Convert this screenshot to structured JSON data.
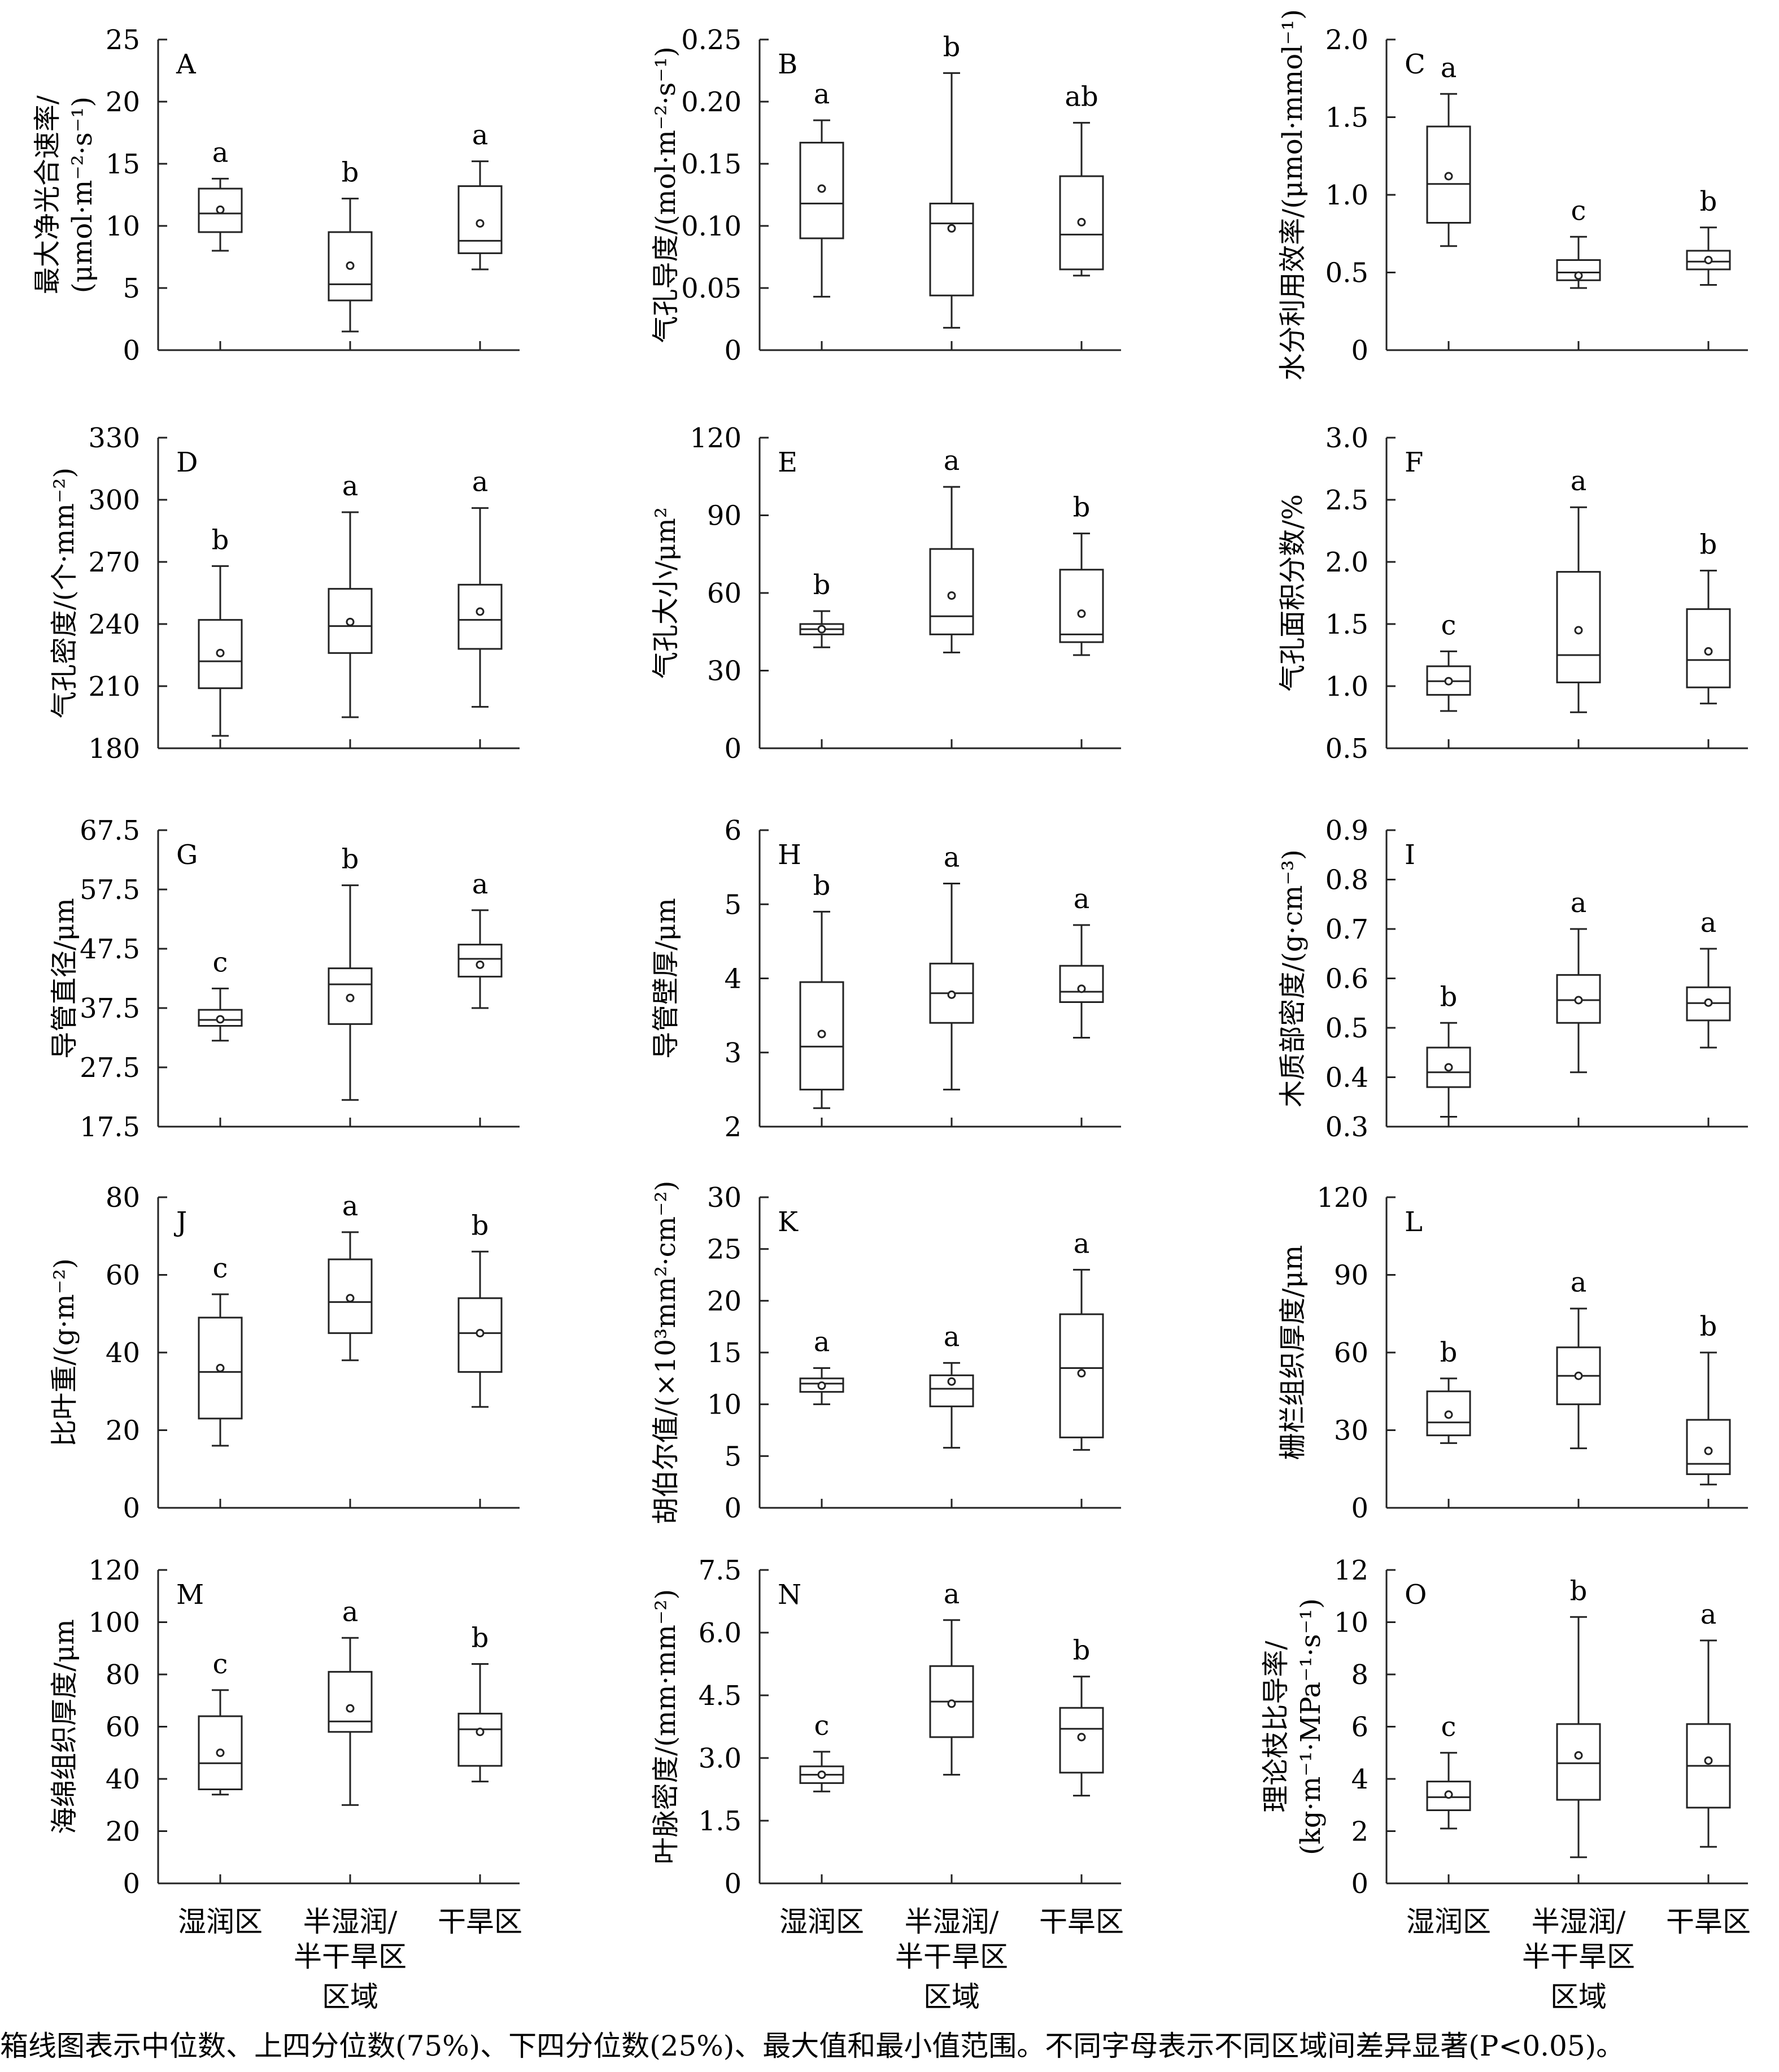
{
  "footnote": "箱线图表示中位数、上四分位数(75%)、下四分位数(25%)、最大值和最小值范围。不同字母表示不同区域间差异显著(P<0.05)。",
  "shared": {
    "categories": [
      "湿润区",
      "半湿润/\n半干旱区",
      "干旱区"
    ],
    "xlabel": "区域"
  },
  "chart_data": [
    {
      "type": "box",
      "letter": "A",
      "ylabel": "最大净光合速率/\n(μmol·m⁻²·s⁻¹)",
      "ylim": [
        0,
        25
      ],
      "ticks": [
        "0",
        "5",
        "10",
        "15",
        "20",
        "25"
      ],
      "boxes": [
        {
          "min": 8.0,
          "q1": 9.5,
          "median": 11.0,
          "q3": 13.0,
          "max": 13.8,
          "mean": 11.3,
          "sig": "a"
        },
        {
          "min": 1.5,
          "q1": 4.0,
          "median": 5.3,
          "q3": 9.5,
          "max": 12.2,
          "mean": 6.8,
          "sig": "b"
        },
        {
          "min": 6.5,
          "q1": 7.8,
          "median": 8.8,
          "q3": 13.2,
          "max": 15.2,
          "mean": 10.2,
          "sig": "a"
        }
      ]
    },
    {
      "type": "box",
      "letter": "B",
      "ylabel": "气孔导度/(mol·m⁻²·s⁻¹)",
      "ylim": [
        0,
        0.25
      ],
      "ticks": [
        "0",
        "0.05",
        "0.10",
        "0.15",
        "0.20",
        "0.25"
      ],
      "boxes": [
        {
          "min": 0.043,
          "q1": 0.09,
          "median": 0.118,
          "q3": 0.167,
          "max": 0.185,
          "mean": 0.13,
          "sig": "a"
        },
        {
          "min": 0.018,
          "q1": 0.044,
          "median": 0.102,
          "q3": 0.118,
          "max": 0.223,
          "mean": 0.098,
          "sig": "b"
        },
        {
          "min": 0.06,
          "q1": 0.065,
          "median": 0.093,
          "q3": 0.14,
          "max": 0.183,
          "mean": 0.103,
          "sig": "ab"
        }
      ]
    },
    {
      "type": "box",
      "letter": "C",
      "ylabel": "水分利用效率/(μmol·mmol⁻¹)",
      "ylim": [
        0,
        2.0
      ],
      "ticks": [
        "0",
        "0.5",
        "1.0",
        "1.5",
        "2.0"
      ],
      "boxes": [
        {
          "min": 0.67,
          "q1": 0.82,
          "median": 1.07,
          "q3": 1.44,
          "max": 1.65,
          "mean": 1.12,
          "sig": "a"
        },
        {
          "min": 0.4,
          "q1": 0.45,
          "median": 0.5,
          "q3": 0.58,
          "max": 0.73,
          "mean": 0.48,
          "sig": "c"
        },
        {
          "min": 0.42,
          "q1": 0.52,
          "median": 0.57,
          "q3": 0.64,
          "max": 0.79,
          "mean": 0.58,
          "sig": "b"
        }
      ]
    },
    {
      "type": "box",
      "letter": "D",
      "ylabel": "气孔密度/(个·mm⁻²)",
      "ylim": [
        180,
        330
      ],
      "ticks": [
        "180",
        "210",
        "240",
        "270",
        "300",
        "330"
      ],
      "boxes": [
        {
          "min": 186,
          "q1": 209,
          "median": 222,
          "q3": 242,
          "max": 268,
          "mean": 226,
          "sig": "b"
        },
        {
          "min": 195,
          "q1": 226,
          "median": 239,
          "q3": 257,
          "max": 294,
          "mean": 241,
          "sig": "a"
        },
        {
          "min": 200,
          "q1": 228,
          "median": 242,
          "q3": 259,
          "max": 296,
          "mean": 246,
          "sig": "a"
        }
      ]
    },
    {
      "type": "box",
      "letter": "E",
      "ylabel": "气孔大小/μm²",
      "ylim": [
        0,
        120
      ],
      "ticks": [
        "0",
        "30",
        "60",
        "90",
        "120"
      ],
      "boxes": [
        {
          "min": 39,
          "q1": 44,
          "median": 46,
          "q3": 48,
          "max": 53,
          "mean": 46,
          "sig": "b"
        },
        {
          "min": 37,
          "q1": 44,
          "median": 51,
          "q3": 77,
          "max": 101,
          "mean": 59,
          "sig": "a"
        },
        {
          "min": 36,
          "q1": 41,
          "median": 44,
          "q3": 69,
          "max": 83,
          "mean": 52,
          "sig": "b"
        }
      ]
    },
    {
      "type": "box",
      "letter": "F",
      "ylabel": "气孔面积分数/%",
      "ylim": [
        0.5,
        3.0
      ],
      "ticks": [
        "0.5",
        "1.0",
        "1.5",
        "2.0",
        "2.5",
        "3.0"
      ],
      "boxes": [
        {
          "min": 0.8,
          "q1": 0.93,
          "median": 1.04,
          "q3": 1.16,
          "max": 1.28,
          "mean": 1.04,
          "sig": "c"
        },
        {
          "min": 0.79,
          "q1": 1.03,
          "median": 1.25,
          "q3": 1.92,
          "max": 2.44,
          "mean": 1.45,
          "sig": "a"
        },
        {
          "min": 0.86,
          "q1": 0.99,
          "median": 1.21,
          "q3": 1.62,
          "max": 1.93,
          "mean": 1.28,
          "sig": "b"
        }
      ]
    },
    {
      "type": "box",
      "letter": "G",
      "ylabel": "导管直径/μm",
      "ylim": [
        17.5,
        67.5
      ],
      "ticks": [
        "17.5",
        "27.5",
        "37.5",
        "47.5",
        "57.5",
        "67.5"
      ],
      "boxes": [
        {
          "min": 32.0,
          "q1": 34.5,
          "median": 35.5,
          "q3": 37.2,
          "max": 40.8,
          "mean": 35.6,
          "sig": "c"
        },
        {
          "min": 22.0,
          "q1": 34.8,
          "median": 41.5,
          "q3": 44.2,
          "max": 58.2,
          "mean": 39.2,
          "sig": "b"
        },
        {
          "min": 37.5,
          "q1": 42.8,
          "median": 45.8,
          "q3": 48.2,
          "max": 54.0,
          "mean": 44.8,
          "sig": "a"
        }
      ]
    },
    {
      "type": "box",
      "letter": "H",
      "ylabel": "导管壁厚/μm",
      "ylim": [
        2,
        6
      ],
      "ticks": [
        "2",
        "3",
        "4",
        "5",
        "6"
      ],
      "boxes": [
        {
          "min": 2.25,
          "q1": 2.5,
          "median": 3.08,
          "q3": 3.95,
          "max": 4.9,
          "mean": 3.25,
          "sig": "b"
        },
        {
          "min": 2.5,
          "q1": 3.4,
          "median": 3.8,
          "q3": 4.2,
          "max": 5.28,
          "mean": 3.78,
          "sig": "a"
        },
        {
          "min": 3.2,
          "q1": 3.68,
          "median": 3.82,
          "q3": 4.17,
          "max": 4.72,
          "mean": 3.86,
          "sig": "a"
        }
      ]
    },
    {
      "type": "box",
      "letter": "I",
      "ylabel": "木质部密度/(g·cm⁻³)",
      "ylim": [
        0.3,
        0.9
      ],
      "ticks": [
        "0.3",
        "0.4",
        "0.5",
        "0.6",
        "0.7",
        "0.8",
        "0.9"
      ],
      "boxes": [
        {
          "min": 0.32,
          "q1": 0.38,
          "median": 0.41,
          "q3": 0.46,
          "max": 0.51,
          "mean": 0.42,
          "sig": "b"
        },
        {
          "min": 0.41,
          "q1": 0.51,
          "median": 0.556,
          "q3": 0.607,
          "max": 0.7,
          "mean": 0.556,
          "sig": "a"
        },
        {
          "min": 0.46,
          "q1": 0.515,
          "median": 0.55,
          "q3": 0.582,
          "max": 0.66,
          "mean": 0.551,
          "sig": "a"
        }
      ]
    },
    {
      "type": "box",
      "letter": "J",
      "ylabel": "比叶重/(g·m⁻²)",
      "ylim": [
        0,
        80
      ],
      "ticks": [
        "0",
        "20",
        "40",
        "60",
        "80"
      ],
      "boxes": [
        {
          "min": 16,
          "q1": 23,
          "median": 35,
          "q3": 49,
          "max": 55,
          "mean": 36,
          "sig": "c"
        },
        {
          "min": 38,
          "q1": 45,
          "median": 53,
          "q3": 64,
          "max": 71,
          "mean": 54,
          "sig": "a"
        },
        {
          "min": 26,
          "q1": 35,
          "median": 45,
          "q3": 54,
          "max": 66,
          "mean": 45,
          "sig": "b"
        }
      ]
    },
    {
      "type": "box",
      "letter": "K",
      "ylabel": "胡伯尔值/(×10³mm²·cm⁻²)",
      "ylim": [
        0,
        30
      ],
      "ticks": [
        "0",
        "5",
        "10",
        "15",
        "20",
        "25",
        "30"
      ],
      "boxes": [
        {
          "min": 10.0,
          "q1": 11.2,
          "median": 12.0,
          "q3": 12.5,
          "max": 13.5,
          "mean": 11.8,
          "sig": "a"
        },
        {
          "min": 5.8,
          "q1": 9.8,
          "median": 11.5,
          "q3": 12.8,
          "max": 14.0,
          "mean": 12.2,
          "sig": "a"
        },
        {
          "min": 5.6,
          "q1": 6.8,
          "median": 13.5,
          "q3": 18.7,
          "max": 23.0,
          "mean": 13.0,
          "sig": "a"
        }
      ]
    },
    {
      "type": "box",
      "letter": "L",
      "ylabel": "栅栏组织厚度/μm",
      "ylim": [
        0,
        120
      ],
      "ticks": [
        "0",
        "30",
        "60",
        "90",
        "120"
      ],
      "boxes": [
        {
          "min": 25,
          "q1": 28,
          "median": 33,
          "q3": 45,
          "max": 50,
          "mean": 36,
          "sig": "b"
        },
        {
          "min": 23,
          "q1": 40,
          "median": 51,
          "q3": 62,
          "max": 77,
          "mean": 51,
          "sig": "a"
        },
        {
          "min": 9,
          "q1": 13,
          "median": 17,
          "q3": 34,
          "max": 60,
          "mean": 22,
          "sig": "b"
        }
      ]
    },
    {
      "type": "box",
      "letter": "M",
      "ylabel": "海绵组织厚度/μm",
      "ylim": [
        0,
        120
      ],
      "ticks": [
        "0",
        "20",
        "40",
        "60",
        "80",
        "100",
        "120"
      ],
      "boxes": [
        {
          "min": 34,
          "q1": 36,
          "median": 46,
          "q3": 64,
          "max": 74,
          "mean": 50,
          "sig": "c"
        },
        {
          "min": 30,
          "q1": 58,
          "median": 62,
          "q3": 81,
          "max": 94,
          "mean": 67,
          "sig": "a"
        },
        {
          "min": 39,
          "q1": 45,
          "median": 59,
          "q3": 65,
          "max": 84,
          "mean": 58,
          "sig": "b"
        }
      ]
    },
    {
      "type": "box",
      "letter": "N",
      "ylabel": "叶脉密度/(mm·mm⁻²)",
      "ylim": [
        0,
        7.5
      ],
      "ticks": [
        "0",
        "1.5",
        "3.0",
        "4.5",
        "6.0",
        "7.5"
      ],
      "boxes": [
        {
          "min": 2.2,
          "q1": 2.4,
          "median": 2.6,
          "q3": 2.8,
          "max": 3.15,
          "mean": 2.6,
          "sig": "c"
        },
        {
          "min": 2.6,
          "q1": 3.5,
          "median": 4.35,
          "q3": 5.2,
          "max": 6.3,
          "mean": 4.3,
          "sig": "a"
        },
        {
          "min": 2.1,
          "q1": 2.65,
          "median": 3.7,
          "q3": 4.2,
          "max": 4.95,
          "mean": 3.5,
          "sig": "b"
        }
      ]
    },
    {
      "type": "box",
      "letter": "O",
      "ylabel": "理论枝比导率/\n(kg·m⁻¹·MPa⁻¹·s⁻¹)",
      "ylim": [
        0,
        12
      ],
      "ticks": [
        "0",
        "2",
        "4",
        "6",
        "8",
        "10",
        "12"
      ],
      "boxes": [
        {
          "min": 2.1,
          "q1": 2.8,
          "median": 3.3,
          "q3": 3.9,
          "max": 5.0,
          "mean": 3.4,
          "sig": "c"
        },
        {
          "min": 1.0,
          "q1": 3.2,
          "median": 4.6,
          "q3": 6.1,
          "max": 10.2,
          "mean": 4.9,
          "sig": "b"
        },
        {
          "min": 1.4,
          "q1": 2.9,
          "median": 4.5,
          "q3": 6.1,
          "max": 9.3,
          "mean": 4.7,
          "sig": "a"
        }
      ]
    }
  ]
}
